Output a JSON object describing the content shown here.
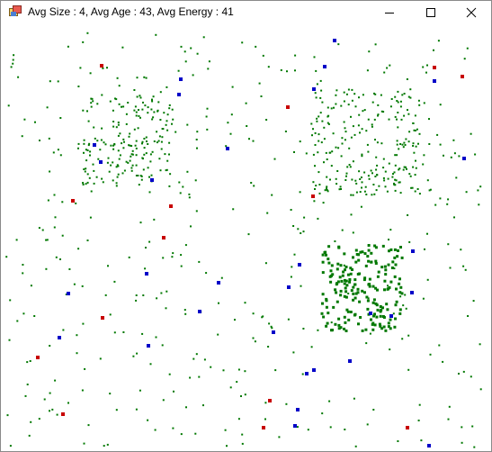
{
  "window": {
    "title": "Avg Size : 4, Avg Age : 43, Avg Energy : 41",
    "controls": [
      "minimize-icon",
      "maximize-icon",
      "close-icon"
    ]
  },
  "simulation": {
    "colors": {
      "plant": "#007800",
      "herbivore": "#0000c8",
      "carnivore": "#c80000",
      "background": "#ffffff"
    },
    "legend_shown": false
  }
}
